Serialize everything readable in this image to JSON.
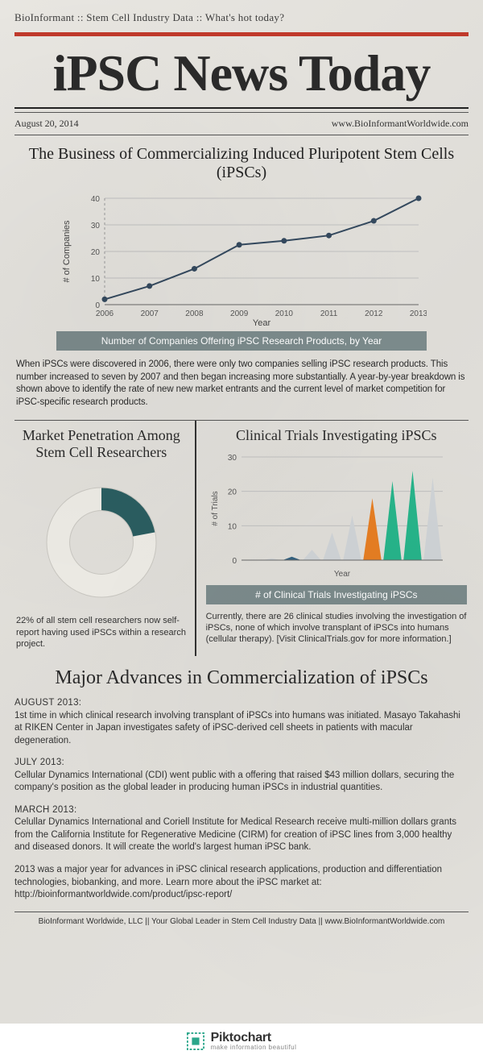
{
  "header": {
    "topline": "BioInformant  ::  Stem Cell Industry Data ::  What's hot today?",
    "redbar_color": "#c0392b",
    "masthead": "iPSC News Today",
    "date": "August 20, 2014",
    "url": "www.BioInformantWorldwide.com"
  },
  "line_chart": {
    "section_title": "The Business of Commercializing Induced Pluripotent Stem Cells (iPSCs)",
    "type": "line",
    "x_label": "Year",
    "y_label": "# of Companies",
    "x_values": [
      "2006",
      "2007",
      "2008",
      "2009",
      "2010",
      "2011",
      "2012",
      "2013"
    ],
    "y_values": [
      2,
      7,
      13.5,
      22.5,
      24,
      26,
      31.5,
      40
    ],
    "ylim": [
      0,
      40
    ],
    "ytick_step": 10,
    "line_color": "#34495e",
    "marker_color": "#34495e",
    "grid_color": "#bfbfbf",
    "axis_color": "#666666",
    "caption": "Number of Companies Offering iPSC Research Products, by Year",
    "caption_bg": "#7b8a8b",
    "body": "When iPSCs were discovered in 2006, there were only two companies selling iPSC research products. This number increased to seven by 2007 and then began increasing more substantially. A year-by-year breakdown is shown above to identify the rate of new new market entrants and the current level of market competition for iPSC-specific research products."
  },
  "donut": {
    "title": "Market Penetration Among Stem Cell Researchers",
    "type": "donut",
    "percent": 22,
    "fill_color": "#2a5d60",
    "track_color": "#eceae4",
    "inner_hole": 0.58,
    "caption": "22% of all stem cell researchers now self-report having used iPSCs within a research project."
  },
  "trials_chart": {
    "title": "Clinical Trials Investigating iPSCs",
    "type": "area-spikes",
    "y_label": "# of Trials",
    "x_label": "Year",
    "values": [
      0,
      0.5,
      1,
      3,
      8,
      13,
      18,
      23,
      26,
      24
    ],
    "colors": [
      "#cfd3d6",
      "#cfd3d6",
      "#34617f",
      "#cfd3d6",
      "#cfd3d6",
      "#cfd3d6",
      "#e67e22",
      "#27b48a",
      "#27b48a",
      "#cfd3d6"
    ],
    "ylim": [
      0,
      30
    ],
    "ytick_step": 10,
    "grid_color": "#bfbfbf",
    "axis_color": "#666666",
    "caption_bg": "#7b8a8b",
    "caption": "# of Clinical Trials Investigating iPSCs",
    "body": "Currently, there are 26 clinical studies involving the investigation of iPSCs, none of which involve transplant of iPSCs into humans (cellular therapy). [Visit ClinicalTrials.gov for more information.]"
  },
  "advances": {
    "title": "Major Advances in Commercialization of iPSCs",
    "items": [
      {
        "hd": "AUGUST 2013:",
        "body": "1st time in which clinical research involving transplant of iPSCs into humans was initiated. Masayo Takahashi at RIKEN Center in Japan investigates safety of iPSC-derived cell sheets in patients with macular degeneration."
      },
      {
        "hd": "JULY 2013:",
        "body": "Cellular Dynamics International (CDI) went public with a offering that raised $43 million dollars, securing the company's position as the global leader in producing human iPSCs in industrial quantities."
      },
      {
        "hd": "MARCH 2013:",
        "body": "Celullar Dynamics International and  Coriell Institute for Medical Research receive multi-million dollars grants from the California Institute for Regenerative Medicine (CIRM) for creation of iPSC lines from 3,000 healthy and diseased donors. It will create the world's largest human iPSC bank."
      }
    ],
    "tail": "2013 was a major year for advances in iPSC clinical research applications, production and differentiation technologies, biobanking, and more. Learn more about the iPSC market at: http://bioinformantworldwide.com/product/ipsc-report/"
  },
  "footer": "BioInformant Worldwide, LLC ||  Your Global Leader in Stem Cell Industry Data  || www.BioInformantWorldwide.com",
  "pikto": {
    "brand": "Piktochart",
    "tag": "make information beautiful",
    "logo_color": "#2aa68a"
  }
}
